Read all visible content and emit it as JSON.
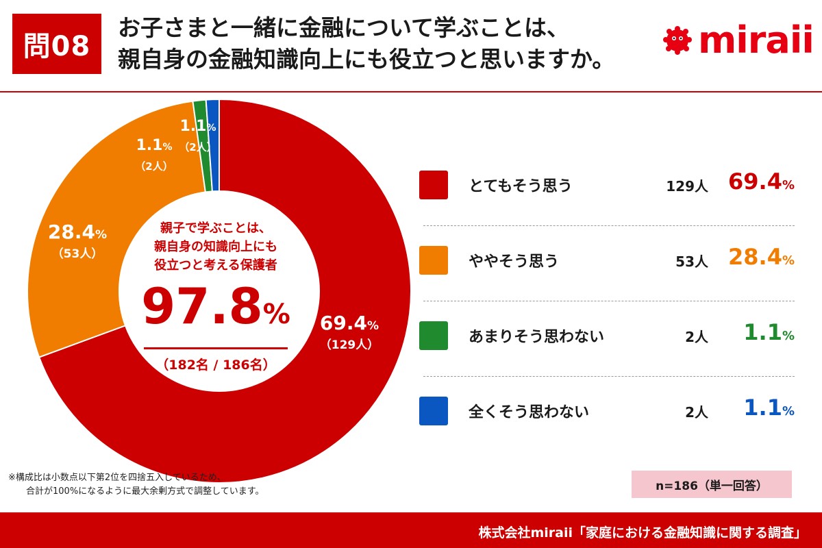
{
  "header": {
    "question_badge": "問08",
    "title_line1": "お子さまと一緒に金融について学ぶことは、",
    "title_line2": "親自身の金融知識向上にも役立つと思いますか。",
    "logo_text": "miraii"
  },
  "center": {
    "line1": "親子で学ぶことは、",
    "line2": "親自身の知識向上にも",
    "line3": "役立つと考える保護者",
    "big_value": "97.8",
    "big_unit": "%",
    "count": "（182名 / 186名）"
  },
  "chart_data": {
    "type": "pie",
    "subtype": "donut",
    "start": "top",
    "direction": "clockwise",
    "slices": [
      {
        "label": "とてもそう思う",
        "count": "129人",
        "count_short": "（129人）",
        "value": 69.4,
        "pct_num": "69.4",
        "pct_unit": "%",
        "color": "#cc0000"
      },
      {
        "label": "ややそう思う",
        "count": "53人",
        "count_short": "（53人）",
        "value": 28.4,
        "pct_num": "28.4",
        "pct_unit": "%",
        "color": "#f07c00"
      },
      {
        "label": "あまりそう思わない",
        "count": "2人",
        "count_short": "（2人）",
        "value": 1.1,
        "pct_num": "1.1",
        "pct_unit": "%",
        "color": "#1f8a2e"
      },
      {
        "label": "全くそう思わない",
        "count": "2人",
        "count_short": "（2人）",
        "value": 1.1,
        "pct_num": "1.1",
        "pct_unit": "%",
        "color": "#0b57c1"
      }
    ]
  },
  "note": {
    "line1": "※構成比は小数点以下第2位を四捨五入しているため、",
    "line2": "合計が100%になるように最大余剰方式で調整しています。"
  },
  "sample": "n=186（単一回答）",
  "footer": "株式会社miraii「家庭における金融知識に関する調査」",
  "colors": {
    "brand_red": "#cc0000",
    "sample_bg": "#f6c6cf",
    "logo_red": "#e60012"
  }
}
